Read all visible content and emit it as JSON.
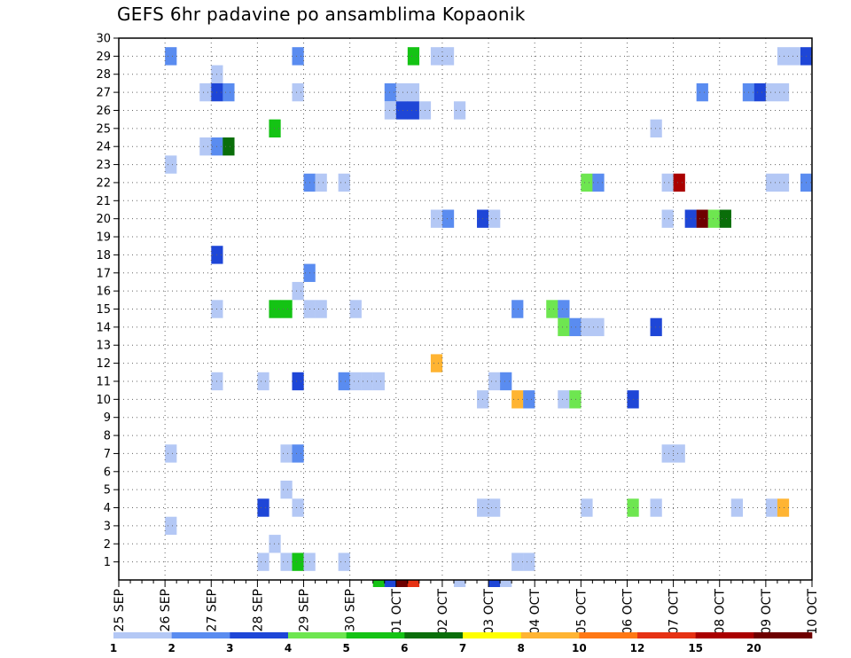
{
  "title": "GEFS 6hr padavine po ansamblima Kopaonik",
  "chart_data": {
    "type": "heatmap",
    "title": "GEFS 6hr padavine po ansamblima Kopaonik",
    "xlabel": "",
    "ylabel": "",
    "x_tick_labels": [
      "25 SEP",
      "26 SEP",
      "27 SEP",
      "28 SEP",
      "29 SEP",
      "30 SEP",
      "01 OCT",
      "02 OCT",
      "03 OCT",
      "04 OCT",
      "05 OCT",
      "06 OCT",
      "07 OCT",
      "08 OCT",
      "09 OCT",
      "10 OCT"
    ],
    "x_range": [
      0,
      60
    ],
    "x_step_unit": "6h",
    "y_range": [
      0,
      30
    ],
    "y_tick_labels": [
      "1",
      "2",
      "3",
      "4",
      "5",
      "6",
      "7",
      "8",
      "9",
      "10",
      "11",
      "12",
      "13",
      "14",
      "15",
      "16",
      "17",
      "18",
      "19",
      "20",
      "21",
      "22",
      "23",
      "24",
      "25",
      "26",
      "27",
      "28",
      "29",
      "30"
    ],
    "grid": true,
    "legend": {
      "position": "bottom",
      "labels": [
        "1",
        "2",
        "3",
        "4",
        "5",
        "6",
        "7",
        "8",
        "10",
        "12",
        "15",
        "20"
      ],
      "colors": [
        "#b4c8f5",
        "#5a8cf0",
        "#1e46d7",
        "#6ee650",
        "#14c314",
        "#0a6e0a",
        "#ffff00",
        "#ffb432",
        "#ff7814",
        "#e63214",
        "#aa0000",
        "#6e0000"
      ]
    },
    "levels": [
      1,
      2,
      3,
      4,
      5,
      6,
      7,
      8,
      10,
      12,
      15,
      20
    ],
    "cell_color_index": "0=1-2, 1=2-3, 2=3-4, 3=4-5, 4=5-6, 5=6-7, 6=7-8, 7=8-10, 8=10-12, 9=12-15, 10=15-20, 11=20+",
    "cells": [
      {
        "member": 29,
        "steps": [
          [
            4,
            1
          ],
          [
            15,
            1
          ],
          [
            25,
            4
          ],
          [
            27,
            0
          ],
          [
            28,
            0
          ],
          [
            57,
            0
          ],
          [
            58,
            0
          ],
          [
            59,
            2
          ]
        ]
      },
      {
        "member": 28,
        "steps": [
          [
            8,
            0
          ]
        ]
      },
      {
        "member": 27,
        "steps": [
          [
            7,
            0
          ],
          [
            8,
            2
          ],
          [
            9,
            1
          ],
          [
            15,
            0
          ],
          [
            23,
            1
          ],
          [
            24,
            0
          ],
          [
            25,
            0
          ],
          [
            50,
            1
          ],
          [
            54,
            1
          ],
          [
            55,
            2
          ],
          [
            56,
            0
          ],
          [
            57,
            0
          ]
        ]
      },
      {
        "member": 26,
        "steps": [
          [
            23,
            0
          ],
          [
            24,
            2
          ],
          [
            25,
            2
          ],
          [
            26,
            0
          ],
          [
            29,
            0
          ]
        ]
      },
      {
        "member": 25,
        "steps": [
          [
            13,
            4
          ],
          [
            46,
            0
          ]
        ]
      },
      {
        "member": 24,
        "steps": [
          [
            7,
            0
          ],
          [
            8,
            1
          ],
          [
            9,
            5
          ]
        ]
      },
      {
        "member": 23,
        "steps": [
          [
            4,
            0
          ]
        ]
      },
      {
        "member": 22,
        "steps": [
          [
            16,
            1
          ],
          [
            17,
            0
          ],
          [
            19,
            0
          ],
          [
            40,
            3
          ],
          [
            41,
            1
          ],
          [
            47,
            0
          ],
          [
            48,
            10
          ],
          [
            56,
            0
          ],
          [
            57,
            0
          ],
          [
            59,
            1
          ]
        ]
      },
      {
        "member": 20,
        "steps": [
          [
            27,
            0
          ],
          [
            28,
            1
          ],
          [
            31,
            2
          ],
          [
            32,
            0
          ],
          [
            47,
            0
          ],
          [
            49,
            2
          ],
          [
            50,
            11
          ],
          [
            51,
            3
          ],
          [
            52,
            5
          ]
        ]
      },
      {
        "member": 18,
        "steps": [
          [
            8,
            2
          ]
        ]
      },
      {
        "member": 17,
        "steps": [
          [
            16,
            1
          ]
        ]
      },
      {
        "member": 16,
        "steps": [
          [
            15,
            0
          ]
        ]
      },
      {
        "member": 15,
        "steps": [
          [
            8,
            0
          ],
          [
            13,
            4
          ],
          [
            14,
            4
          ],
          [
            16,
            0
          ],
          [
            17,
            0
          ],
          [
            20,
            0
          ],
          [
            34,
            1
          ],
          [
            37,
            3
          ],
          [
            38,
            1
          ]
        ]
      },
      {
        "member": 14,
        "steps": [
          [
            38,
            3
          ],
          [
            39,
            1
          ],
          [
            40,
            0
          ],
          [
            41,
            0
          ],
          [
            46,
            2
          ]
        ]
      },
      {
        "member": 12,
        "steps": [
          [
            27,
            7
          ]
        ]
      },
      {
        "member": 11,
        "steps": [
          [
            8,
            0
          ],
          [
            12,
            0
          ],
          [
            15,
            2
          ],
          [
            19,
            1
          ],
          [
            20,
            0
          ],
          [
            21,
            0
          ],
          [
            22,
            0
          ],
          [
            32,
            0
          ],
          [
            33,
            1
          ]
        ]
      },
      {
        "member": 10,
        "steps": [
          [
            31,
            0
          ],
          [
            34,
            7
          ],
          [
            35,
            1
          ],
          [
            38,
            0
          ],
          [
            39,
            3
          ],
          [
            44,
            2
          ]
        ]
      },
      {
        "member": 7,
        "steps": [
          [
            4,
            0
          ],
          [
            14,
            0
          ],
          [
            15,
            1
          ],
          [
            47,
            0
          ],
          [
            48,
            0
          ]
        ]
      },
      {
        "member": 5,
        "steps": [
          [
            14,
            0
          ]
        ]
      },
      {
        "member": 4,
        "steps": [
          [
            12,
            2
          ],
          [
            15,
            0
          ],
          [
            31,
            0
          ],
          [
            32,
            0
          ],
          [
            40,
            0
          ],
          [
            44,
            3
          ],
          [
            46,
            0
          ],
          [
            53,
            0
          ],
          [
            56,
            0
          ],
          [
            57,
            7
          ]
        ]
      },
      {
        "member": 3,
        "steps": [
          [
            4,
            0
          ]
        ]
      },
      {
        "member": 2,
        "steps": [
          [
            13,
            0
          ]
        ]
      },
      {
        "member": 1,
        "steps": [
          [
            12,
            0
          ],
          [
            14,
            0
          ],
          [
            15,
            4
          ],
          [
            16,
            0
          ],
          [
            19,
            0
          ],
          [
            34,
            0
          ],
          [
            35,
            0
          ]
        ]
      },
      {
        "member": 0,
        "steps": [
          [
            22,
            4
          ],
          [
            23,
            2
          ],
          [
            24,
            11
          ],
          [
            25,
            9
          ],
          [
            29,
            0
          ],
          [
            32,
            2
          ],
          [
            33,
            0
          ]
        ]
      }
    ]
  }
}
